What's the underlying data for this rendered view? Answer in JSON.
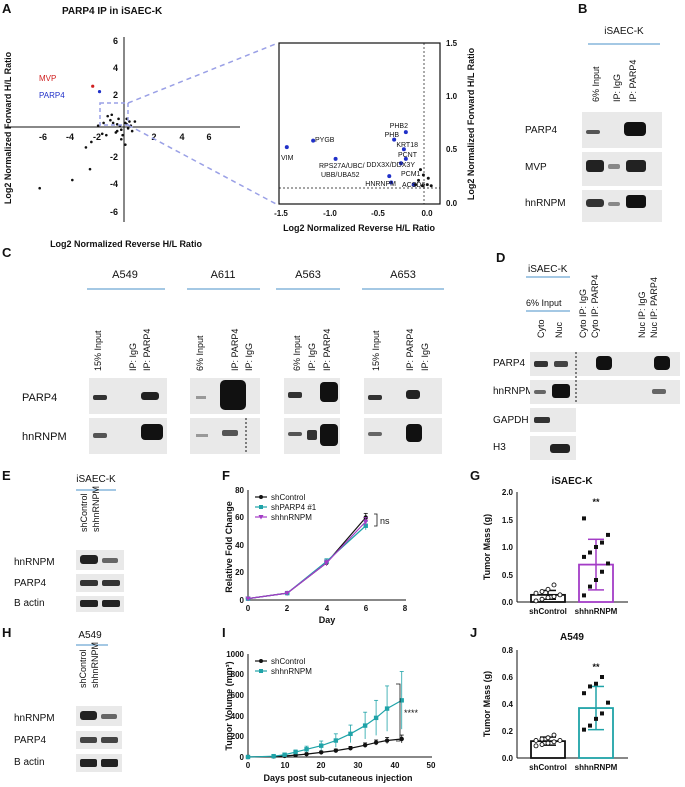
{
  "panels": {
    "A": "A",
    "B": "B",
    "C": "C",
    "D": "D",
    "E": "E",
    "F": "F",
    "G": "G",
    "H": "H",
    "I": "I",
    "J": "J"
  },
  "panelA": {
    "title": "PARP4 IP in iSAEC-K",
    "ylabel": "Log2 Normalized Forward H/L Ratio",
    "xlabel": "Log2 Normalized Reverse H/L Ratio",
    "yticks": [
      "6",
      "4",
      "2",
      "-2",
      "-4",
      "-6"
    ],
    "xticks": [
      "-6",
      "-4",
      "-2",
      "2",
      "4",
      "6"
    ],
    "labels": {
      "mvp": "MVP",
      "parp4": "PARP4"
    },
    "inset_xlabel": "Log2 Normalized Reverse H/L Ratio",
    "inset_ylabel": "Log2 Normalized Forward H/L Ratio",
    "inset_xticks": [
      "-1.5",
      "-1.0",
      "-0.5",
      "0.0"
    ],
    "inset_yticks": [
      "1.5",
      "1.0",
      "0.5",
      "0.0"
    ],
    "genes": {
      "phb2": "PHB2",
      "phb": "PHB",
      "krt18": "KRT18",
      "pcnt": "PCNT",
      "pygb": "PYGB",
      "vim": "VIM",
      "rps27a": "RPS27A/UBC/",
      "ubb": "UBB/UBA52",
      "ddx3x": "DDX3X/DDX3Y",
      "pcm1": "PCM1",
      "hnrnpm": "HNRNPM",
      "acsd": "ACSD6"
    }
  },
  "panelB": {
    "cell": "iSAEC-K",
    "lanes": [
      "6% Input",
      "IP: IgG",
      "IP: PARP4"
    ],
    "rows": [
      "PARP4",
      "MVP",
      "hnRNPM"
    ]
  },
  "panelC": {
    "cells": [
      "A549",
      "A611",
      "A563",
      "A653"
    ],
    "lanes_a549": [
      "15% Input",
      "IP: IgG",
      "IP: PARP4"
    ],
    "lanes_a611": [
      "6% Input",
      "IP: PARP4",
      "IP: IgG"
    ],
    "lanes_a563": [
      "6% Input",
      "IP: IgG",
      "IP: PARP4"
    ],
    "lanes_a653": [
      "15% Input",
      "IP: PARP4",
      "IP: IgG"
    ],
    "rows": [
      "PARP4",
      "hnRNPM"
    ]
  },
  "panelD": {
    "cell": "iSAEC-K",
    "input": "6% Input",
    "lanes": [
      "Cyto",
      "Nuc",
      "Cyto IP: IgG",
      "Cyto IP: PARP4",
      "Nuc IP: IgG",
      "Nuc IP: PARP4"
    ],
    "rows": [
      "PARP4",
      "hnRNPM",
      "GAPDH",
      "H3"
    ]
  },
  "panelE": {
    "cell": "iSAEC-K",
    "lanes": [
      "shControl",
      "shhnRNPM"
    ],
    "rows": [
      "hnRNPM",
      "PARP4",
      "B actin"
    ]
  },
  "panelH": {
    "cell": "A549",
    "lanes": [
      "shControl",
      "shhnRNPM"
    ],
    "rows": [
      "hnRNPM",
      "PARP4",
      "B actin"
    ]
  },
  "panelF": {
    "ylabel": "Relative Fold Change",
    "xlabel": "Day",
    "yticks": [
      "0",
      "20",
      "40",
      "60",
      "80"
    ],
    "xticks": [
      "0",
      "2",
      "4",
      "6",
      "8"
    ],
    "ns": "ns"
  },
  "panelG": {
    "title": "iSAEC-K",
    "ylabel": "Tumor Mass (g)",
    "sig": "**",
    "yticks": [
      "0.0",
      "0.5",
      "1.0",
      "1.5",
      "2.0"
    ]
  },
  "panelI": {
    "ylabel": "Tumor Volume (mm³)",
    "xlabel": "Days post sub-cutaneous injection",
    "sig": "****",
    "yticks": [
      "0",
      "200",
      "400",
      "600",
      "800",
      "1000"
    ],
    "xticks": [
      "0",
      "10",
      "20",
      "30",
      "40",
      "50"
    ]
  },
  "panelJ": {
    "title": "A549",
    "ylabel": "Tumor Mass (g)",
    "sig": "**",
    "yticks": [
      "0.0",
      "0.2",
      "0.4",
      "0.6",
      "0.8"
    ]
  },
  "chart_data": [
    {
      "type": "scatter",
      "title": "PARP4 IP in iSAEC-K",
      "xlabel": "Log2 Normalized Reverse H/L Ratio",
      "ylabel": "Log2 Normalized Forward H/L Ratio",
      "xlim": [
        -7,
        7
      ],
      "ylim": [
        -7,
        7
      ],
      "highlighted": [
        {
          "name": "MVP",
          "x": -2.3,
          "y": 3.0
        },
        {
          "name": "PARP4",
          "x": -1.8,
          "y": 2.6
        }
      ],
      "points": [
        [
          -1.2,
          0.8
        ],
        [
          -1.0,
          0.5
        ],
        [
          -0.8,
          0.3
        ],
        [
          -0.5,
          0.2
        ],
        [
          -0.3,
          0.1
        ],
        [
          -0.2,
          -0.2
        ],
        [
          0.1,
          0.3
        ],
        [
          0.3,
          -0.1
        ],
        [
          -0.6,
          -0.4
        ],
        [
          0.2,
          0.2
        ],
        [
          -1.5,
          0.3
        ],
        [
          0.5,
          0.1
        ],
        [
          -0.4,
          0.6
        ],
        [
          0.6,
          -0.3
        ],
        [
          -0.1,
          -0.6
        ],
        [
          0.1,
          -1.3
        ],
        [
          -0.2,
          -0.9
        ],
        [
          -1.3,
          -0.6
        ],
        [
          -1.6,
          -0.5
        ],
        [
          -2.4,
          -1.1
        ],
        [
          -2.8,
          -1.5
        ],
        [
          -2.5,
          -3.1
        ],
        [
          -3.8,
          -3.9
        ],
        [
          -6.2,
          -4.5
        ],
        [
          0.8,
          0.4
        ],
        [
          -1.9,
          0.1
        ],
        [
          0.2,
          0.6
        ],
        [
          -0.9,
          0.9
        ],
        [
          -0.5,
          -0.3
        ],
        [
          0.4,
          0.4
        ]
      ]
    },
    {
      "type": "scatter",
      "title": "inset",
      "xlabel": "Log2 Normalized Reverse H/L Ratio",
      "ylabel": "Log2 Normalized Forward H/L Ratio",
      "xlim": [
        -1.5,
        0.15
      ],
      "ylim": [
        0,
        1.5
      ],
      "labeled": [
        {
          "name": "PHB2",
          "x": -0.2,
          "y": 0.67
        },
        {
          "name": "PHB",
          "x": -0.32,
          "y": 0.6
        },
        {
          "name": "KRT18",
          "x": -0.22,
          "y": 0.51
        },
        {
          "name": "PCNT",
          "x": -0.2,
          "y": 0.42
        },
        {
          "name": "PYGB",
          "x": -1.15,
          "y": 0.59
        },
        {
          "name": "VIM",
          "x": -1.42,
          "y": 0.53
        },
        {
          "name": "RPS27A/UBC/UBB/UBA52",
          "x": -0.92,
          "y": 0.42
        },
        {
          "name": "DDX3X/DDX3Y",
          "x": -0.25,
          "y": 0.38
        },
        {
          "name": "PCM1",
          "x": -0.37,
          "y": 0.26
        },
        {
          "name": "HNRNPM",
          "x": -0.35,
          "y": 0.2
        },
        {
          "name": "ACSD6",
          "x": -0.12,
          "y": 0.18
        }
      ],
      "black": [
        [
          -0.05,
          0.32
        ],
        [
          -0.02,
          0.27
        ],
        [
          0.03,
          0.24
        ],
        [
          -0.07,
          0.22
        ],
        [
          -0.1,
          0.18
        ],
        [
          -0.03,
          0.17
        ],
        [
          0.02,
          0.18
        ],
        [
          0.06,
          0.17
        ]
      ]
    },
    {
      "type": "line",
      "title": "",
      "xlabel": "Day",
      "ylabel": "Relative Fold Change",
      "xlim": [
        0,
        8
      ],
      "ylim": [
        0,
        80
      ],
      "x": [
        0,
        2,
        4,
        6
      ],
      "series": [
        {
          "name": "shControl",
          "values": [
            1,
            5,
            27,
            60
          ],
          "errors": [
            0,
            1,
            2,
            3
          ],
          "color": "#111111"
        },
        {
          "name": "shPARP4 #1",
          "values": [
            1,
            5,
            28,
            54
          ],
          "errors": [
            0,
            1,
            2,
            3
          ],
          "color": "#1fa3a8"
        },
        {
          "name": "shhnRNPM",
          "values": [
            1,
            5,
            27,
            57
          ],
          "errors": [
            0,
            1,
            2,
            3
          ],
          "color": "#a33cc6"
        }
      ],
      "annotation": "ns"
    },
    {
      "type": "bar",
      "title": "iSAEC-K",
      "ylabel": "Tumor Mass (g)",
      "ylim": [
        0,
        2.0
      ],
      "categories": [
        "shControl",
        "shhnRNPM"
      ],
      "values": [
        0.13,
        0.68
      ],
      "errors": [
        0.08,
        0.46
      ],
      "points": [
        [
          0.02,
          0.05,
          0.08,
          0.1,
          0.13,
          0.16,
          0.19,
          0.23,
          0.31
        ],
        [
          0.12,
          0.28,
          0.4,
          0.55,
          0.7,
          0.82,
          0.9,
          1.0,
          1.08,
          1.22,
          1.52
        ]
      ],
      "colors": [
        "#111111",
        "#a33cc6"
      ],
      "annotation": "**"
    },
    {
      "type": "line",
      "title": "",
      "xlabel": "Days post sub-cutaneous injection",
      "ylabel": "Tumor Volume (mm³)",
      "xlim": [
        0,
        50
      ],
      "ylim": [
        0,
        1000
      ],
      "series": [
        {
          "name": "shControl",
          "x": [
            0,
            7,
            10,
            13,
            16,
            20,
            24,
            28,
            32,
            35,
            38,
            42
          ],
          "values": [
            0,
            5,
            10,
            18,
            28,
            45,
            62,
            85,
            115,
            140,
            160,
            175
          ],
          "errors": [
            0,
            5,
            6,
            8,
            10,
            12,
            15,
            18,
            22,
            25,
            30,
            38
          ],
          "color": "#111111"
        },
        {
          "name": "shhnRNPM",
          "x": [
            0,
            7,
            10,
            13,
            16,
            20,
            24,
            28,
            32,
            35,
            38,
            42
          ],
          "values": [
            0,
            8,
            22,
            48,
            75,
            110,
            160,
            225,
            305,
            380,
            470,
            550
          ],
          "errors": [
            0,
            8,
            12,
            20,
            30,
            45,
            65,
            85,
            130,
            170,
            220,
            280
          ],
          "color": "#1fa3a8"
        }
      ],
      "annotation": "****"
    },
    {
      "type": "bar",
      "title": "A549",
      "ylabel": "Tumor Mass (g)",
      "ylim": [
        0,
        0.8
      ],
      "categories": [
        "shControl",
        "shhnRNPM"
      ],
      "values": [
        0.125,
        0.37
      ],
      "errors": [
        0.03,
        0.16
      ],
      "points": [
        [
          0.09,
          0.1,
          0.11,
          0.12,
          0.13,
          0.13,
          0.14,
          0.15,
          0.17
        ],
        [
          0.21,
          0.24,
          0.29,
          0.33,
          0.41,
          0.48,
          0.53,
          0.55,
          0.6
        ]
      ],
      "colors": [
        "#111111",
        "#1fa3a8"
      ],
      "annotation": "**"
    }
  ]
}
